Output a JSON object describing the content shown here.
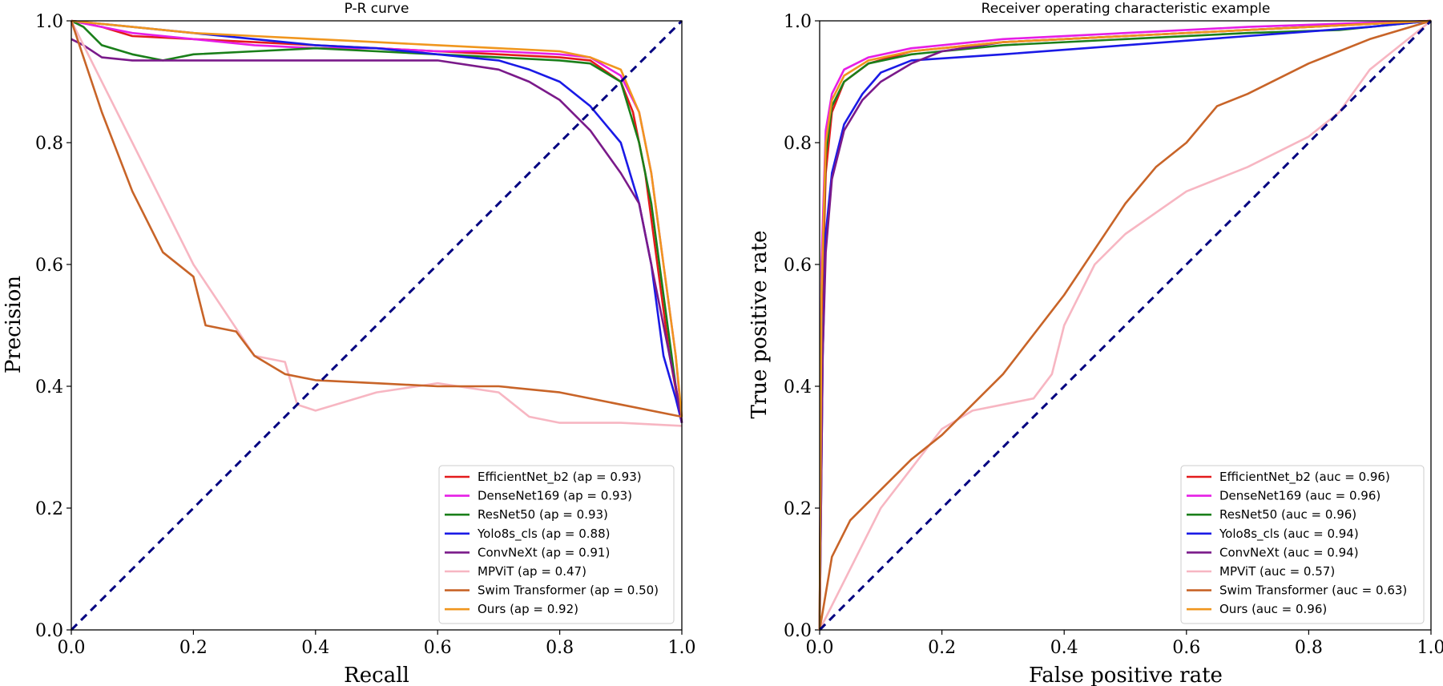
{
  "chart_data": [
    {
      "type": "line",
      "title": "P-R curve",
      "xlabel": "Recall",
      "ylabel": "Precision",
      "xlim": [
        0,
        1
      ],
      "ylim": [
        0,
        1
      ],
      "xticks": [
        "0.0",
        "0.2",
        "0.4",
        "0.6",
        "0.8",
        "1.0"
      ],
      "yticks": [
        "0.0",
        "0.2",
        "0.4",
        "0.6",
        "0.8",
        "1.0"
      ],
      "grid": false,
      "legend_position": "lower-right",
      "diagonal": {
        "color": "#000080",
        "style": "dashed",
        "points": [
          [
            0,
            0
          ],
          [
            1,
            1
          ]
        ]
      },
      "series": [
        {
          "name": "EfficientNet_b2 (ap = 0.93)",
          "color": "#e31a1c",
          "points": [
            [
              0,
              1.0
            ],
            [
              0.05,
              0.99
            ],
            [
              0.1,
              0.975
            ],
            [
              0.2,
              0.97
            ],
            [
              0.3,
              0.965
            ],
            [
              0.4,
              0.96
            ],
            [
              0.5,
              0.955
            ],
            [
              0.6,
              0.95
            ],
            [
              0.7,
              0.945
            ],
            [
              0.8,
              0.94
            ],
            [
              0.85,
              0.935
            ],
            [
              0.9,
              0.9
            ],
            [
              0.92,
              0.85
            ],
            [
              0.94,
              0.75
            ],
            [
              0.96,
              0.6
            ],
            [
              0.98,
              0.45
            ],
            [
              1.0,
              0.34
            ]
          ]
        },
        {
          "name": "DenseNet169 (ap = 0.93)",
          "color": "#e61ee6",
          "points": [
            [
              0,
              1.0
            ],
            [
              0.05,
              0.99
            ],
            [
              0.1,
              0.98
            ],
            [
              0.2,
              0.97
            ],
            [
              0.3,
              0.96
            ],
            [
              0.4,
              0.955
            ],
            [
              0.5,
              0.955
            ],
            [
              0.6,
              0.95
            ],
            [
              0.7,
              0.95
            ],
            [
              0.8,
              0.945
            ],
            [
              0.85,
              0.94
            ],
            [
              0.9,
              0.91
            ],
            [
              0.93,
              0.85
            ],
            [
              0.95,
              0.75
            ],
            [
              0.97,
              0.6
            ],
            [
              0.99,
              0.45
            ],
            [
              1.0,
              0.34
            ]
          ]
        },
        {
          "name": "ResNet50 (ap = 0.93)",
          "color": "#1a7f1a",
          "points": [
            [
              0,
              1.0
            ],
            [
              0.02,
              0.99
            ],
            [
              0.05,
              0.96
            ],
            [
              0.1,
              0.945
            ],
            [
              0.15,
              0.935
            ],
            [
              0.2,
              0.945
            ],
            [
              0.3,
              0.95
            ],
            [
              0.4,
              0.955
            ],
            [
              0.5,
              0.95
            ],
            [
              0.6,
              0.945
            ],
            [
              0.7,
              0.94
            ],
            [
              0.8,
              0.935
            ],
            [
              0.85,
              0.93
            ],
            [
              0.9,
              0.9
            ],
            [
              0.93,
              0.8
            ],
            [
              0.95,
              0.7
            ],
            [
              0.97,
              0.55
            ],
            [
              0.99,
              0.4
            ],
            [
              1.0,
              0.34
            ]
          ]
        },
        {
          "name": "Yolo8s_cls (ap = 0.88)",
          "color": "#1a1ae6",
          "points": [
            [
              0,
              1.0
            ],
            [
              0.1,
              0.99
            ],
            [
              0.2,
              0.98
            ],
            [
              0.3,
              0.97
            ],
            [
              0.4,
              0.96
            ],
            [
              0.5,
              0.955
            ],
            [
              0.6,
              0.945
            ],
            [
              0.7,
              0.935
            ],
            [
              0.75,
              0.92
            ],
            [
              0.8,
              0.9
            ],
            [
              0.85,
              0.86
            ],
            [
              0.9,
              0.8
            ],
            [
              0.93,
              0.7
            ],
            [
              0.95,
              0.6
            ],
            [
              0.97,
              0.45
            ],
            [
              0.99,
              0.38
            ],
            [
              1.0,
              0.34
            ]
          ]
        },
        {
          "name": "ConvNeXt (ap = 0.91)",
          "color": "#7a1a8a",
          "points": [
            [
              0,
              0.97
            ],
            [
              0.02,
              0.96
            ],
            [
              0.05,
              0.94
            ],
            [
              0.1,
              0.935
            ],
            [
              0.2,
              0.935
            ],
            [
              0.3,
              0.935
            ],
            [
              0.4,
              0.935
            ],
            [
              0.5,
              0.935
            ],
            [
              0.6,
              0.935
            ],
            [
              0.7,
              0.92
            ],
            [
              0.75,
              0.9
            ],
            [
              0.8,
              0.87
            ],
            [
              0.85,
              0.82
            ],
            [
              0.9,
              0.75
            ],
            [
              0.93,
              0.7
            ],
            [
              0.95,
              0.6
            ],
            [
              0.97,
              0.5
            ],
            [
              0.99,
              0.4
            ],
            [
              1.0,
              0.34
            ]
          ]
        },
        {
          "name": "MPViT (ap = 0.47)",
          "color": "#f7b6c2",
          "points": [
            [
              0,
              1.0
            ],
            [
              0.1,
              0.8
            ],
            [
              0.2,
              0.6
            ],
            [
              0.3,
              0.45
            ],
            [
              0.35,
              0.44
            ],
            [
              0.37,
              0.37
            ],
            [
              0.4,
              0.36
            ],
            [
              0.5,
              0.39
            ],
            [
              0.6,
              0.405
            ],
            [
              0.7,
              0.39
            ],
            [
              0.75,
              0.35
            ],
            [
              0.8,
              0.34
            ],
            [
              0.9,
              0.34
            ],
            [
              1.0,
              0.335
            ]
          ]
        },
        {
          "name": "Swim Transformer (ap = 0.50)",
          "color": "#c86428",
          "points": [
            [
              0,
              1.0
            ],
            [
              0.05,
              0.85
            ],
            [
              0.1,
              0.72
            ],
            [
              0.15,
              0.62
            ],
            [
              0.2,
              0.58
            ],
            [
              0.22,
              0.5
            ],
            [
              0.27,
              0.49
            ],
            [
              0.3,
              0.45
            ],
            [
              0.35,
              0.42
            ],
            [
              0.4,
              0.41
            ],
            [
              0.5,
              0.405
            ],
            [
              0.6,
              0.4
            ],
            [
              0.7,
              0.4
            ],
            [
              0.8,
              0.39
            ],
            [
              0.9,
              0.37
            ],
            [
              1.0,
              0.35
            ]
          ]
        },
        {
          "name": "Ours (ap = 0.92)",
          "color": "#f0961e",
          "points": [
            [
              0,
              1.0
            ],
            [
              0.1,
              0.99
            ],
            [
              0.2,
              0.98
            ],
            [
              0.3,
              0.975
            ],
            [
              0.4,
              0.97
            ],
            [
              0.5,
              0.965
            ],
            [
              0.6,
              0.96
            ],
            [
              0.7,
              0.955
            ],
            [
              0.8,
              0.95
            ],
            [
              0.85,
              0.94
            ],
            [
              0.9,
              0.92
            ],
            [
              0.93,
              0.85
            ],
            [
              0.95,
              0.75
            ],
            [
              0.97,
              0.6
            ],
            [
              0.99,
              0.45
            ],
            [
              1.0,
              0.35
            ]
          ]
        }
      ]
    },
    {
      "type": "line",
      "title": "Receiver operating characteristic example",
      "xlabel": "False positive rate",
      "ylabel": "True positive rate",
      "xlim": [
        0,
        1
      ],
      "ylim": [
        0,
        1
      ],
      "xticks": [
        "0.0",
        "0.2",
        "0.4",
        "0.6",
        "0.8",
        "1.0"
      ],
      "yticks": [
        "0.0",
        "0.2",
        "0.4",
        "0.6",
        "0.8",
        "1.0"
      ],
      "grid": false,
      "legend_position": "lower-right",
      "diagonal": {
        "color": "#000080",
        "style": "dashed",
        "points": [
          [
            0,
            0
          ],
          [
            1,
            1
          ]
        ]
      },
      "series": [
        {
          "name": "EfficientNet_b2 (auc = 0.96)",
          "color": "#e31a1c",
          "points": [
            [
              0,
              0
            ],
            [
              0.003,
              0.5
            ],
            [
              0.01,
              0.75
            ],
            [
              0.02,
              0.85
            ],
            [
              0.04,
              0.9
            ],
            [
              0.08,
              0.93
            ],
            [
              0.15,
              0.95
            ],
            [
              0.3,
              0.965
            ],
            [
              0.5,
              0.975
            ],
            [
              0.7,
              0.985
            ],
            [
              0.9,
              0.995
            ],
            [
              1.0,
              1.0
            ]
          ]
        },
        {
          "name": "DenseNet169 (auc = 0.96)",
          "color": "#e61ee6",
          "points": [
            [
              0,
              0
            ],
            [
              0.003,
              0.6
            ],
            [
              0.01,
              0.82
            ],
            [
              0.02,
              0.88
            ],
            [
              0.04,
              0.92
            ],
            [
              0.08,
              0.94
            ],
            [
              0.15,
              0.955
            ],
            [
              0.3,
              0.97
            ],
            [
              0.5,
              0.98
            ],
            [
              0.7,
              0.99
            ],
            [
              0.9,
              0.997
            ],
            [
              1.0,
              1.0
            ]
          ]
        },
        {
          "name": "ResNet50 (auc = 0.96)",
          "color": "#1a7f1a",
          "points": [
            [
              0,
              0
            ],
            [
              0.003,
              0.55
            ],
            [
              0.01,
              0.78
            ],
            [
              0.02,
              0.86
            ],
            [
              0.04,
              0.9
            ],
            [
              0.08,
              0.93
            ],
            [
              0.15,
              0.945
            ],
            [
              0.3,
              0.96
            ],
            [
              0.5,
              0.97
            ],
            [
              0.7,
              0.98
            ],
            [
              0.85,
              0.985
            ],
            [
              1.0,
              1.0
            ]
          ]
        },
        {
          "name": "Yolo8s_cls (auc = 0.94)",
          "color": "#1a1ae6",
          "points": [
            [
              0,
              0
            ],
            [
              0.005,
              0.45
            ],
            [
              0.01,
              0.65
            ],
            [
              0.02,
              0.75
            ],
            [
              0.04,
              0.83
            ],
            [
              0.07,
              0.88
            ],
            [
              0.1,
              0.915
            ],
            [
              0.15,
              0.935
            ],
            [
              0.3,
              0.945
            ],
            [
              0.5,
              0.96
            ],
            [
              0.7,
              0.975
            ],
            [
              0.9,
              0.99
            ],
            [
              1.0,
              1.0
            ]
          ]
        },
        {
          "name": "ConvNeXt (auc = 0.94)",
          "color": "#7a1a8a",
          "points": [
            [
              0,
              0
            ],
            [
              0.005,
              0.45
            ],
            [
              0.01,
              0.62
            ],
            [
              0.02,
              0.74
            ],
            [
              0.04,
              0.82
            ],
            [
              0.07,
              0.87
            ],
            [
              0.1,
              0.9
            ],
            [
              0.15,
              0.93
            ],
            [
              0.2,
              0.95
            ],
            [
              0.3,
              0.965
            ],
            [
              0.5,
              0.975
            ],
            [
              0.7,
              0.985
            ],
            [
              0.9,
              0.995
            ],
            [
              1.0,
              1.0
            ]
          ]
        },
        {
          "name": "MPViT (auc = 0.57)",
          "color": "#f7b6c2",
          "points": [
            [
              0,
              0
            ],
            [
              0.1,
              0.2
            ],
            [
              0.2,
              0.33
            ],
            [
              0.25,
              0.36
            ],
            [
              0.3,
              0.37
            ],
            [
              0.35,
              0.38
            ],
            [
              0.38,
              0.42
            ],
            [
              0.4,
              0.5
            ],
            [
              0.45,
              0.6
            ],
            [
              0.5,
              0.65
            ],
            [
              0.6,
              0.72
            ],
            [
              0.7,
              0.76
            ],
            [
              0.8,
              0.81
            ],
            [
              0.85,
              0.85
            ],
            [
              0.9,
              0.92
            ],
            [
              0.95,
              0.96
            ],
            [
              1.0,
              1.0
            ]
          ]
        },
        {
          "name": "Swim Transformer (auc = 0.63)",
          "color": "#c86428",
          "points": [
            [
              0,
              0
            ],
            [
              0.02,
              0.12
            ],
            [
              0.05,
              0.18
            ],
            [
              0.1,
              0.23
            ],
            [
              0.15,
              0.28
            ],
            [
              0.2,
              0.32
            ],
            [
              0.3,
              0.42
            ],
            [
              0.4,
              0.55
            ],
            [
              0.5,
              0.7
            ],
            [
              0.55,
              0.76
            ],
            [
              0.6,
              0.8
            ],
            [
              0.65,
              0.86
            ],
            [
              0.7,
              0.88
            ],
            [
              0.8,
              0.93
            ],
            [
              0.9,
              0.97
            ],
            [
              1.0,
              1.0
            ]
          ]
        },
        {
          "name": "Ours (auc = 0.96)",
          "color": "#f0961e",
          "points": [
            [
              0,
              0
            ],
            [
              0.003,
              0.55
            ],
            [
              0.01,
              0.8
            ],
            [
              0.02,
              0.87
            ],
            [
              0.04,
              0.91
            ],
            [
              0.08,
              0.935
            ],
            [
              0.15,
              0.95
            ],
            [
              0.3,
              0.965
            ],
            [
              0.5,
              0.975
            ],
            [
              0.7,
              0.985
            ],
            [
              0.9,
              0.995
            ],
            [
              1.0,
              1.0
            ]
          ]
        }
      ]
    }
  ]
}
